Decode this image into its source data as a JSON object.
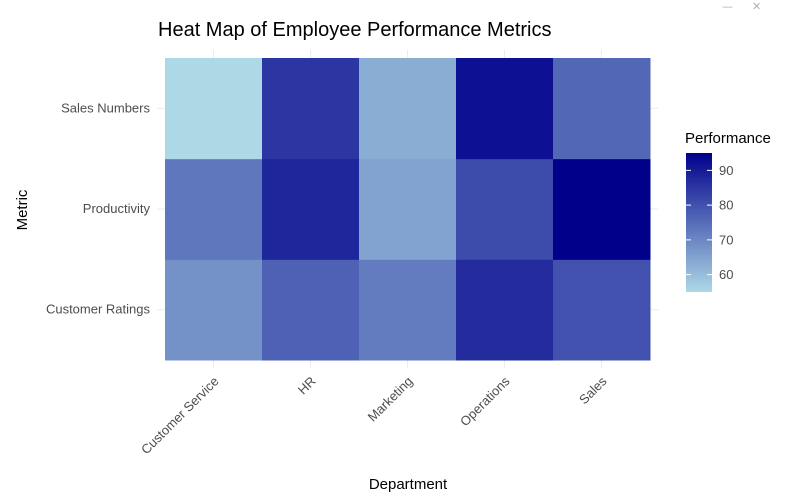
{
  "window_controls": {
    "minimize_label": "—",
    "close_label": "✕"
  },
  "chart_data": {
    "type": "heatmap",
    "title": "Heat Map of Employee Performance Metrics",
    "xlabel": "Department",
    "ylabel": "Metric",
    "x_categories": [
      "Customer Service",
      "HR",
      "Marketing",
      "Operations",
      "Sales"
    ],
    "y_categories": [
      "Customer Ratings",
      "Productivity",
      "Sales Numbers"
    ],
    "values": [
      [
        68,
        77,
        72,
        87,
        80
      ],
      [
        73,
        88,
        65,
        81,
        95
      ],
      [
        55,
        85,
        63,
        92,
        76
      ]
    ],
    "colorbar": {
      "title": "Performance",
      "range": [
        55,
        95
      ],
      "ticks": [
        60,
        70,
        80,
        90
      ],
      "low_color": "#add8e6",
      "high_color": "#00008b"
    },
    "grid": true,
    "legend_position": "right"
  }
}
